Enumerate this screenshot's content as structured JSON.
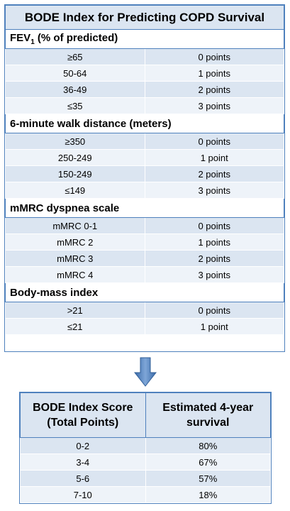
{
  "title": "BODE Index for Predicting COPD Survival",
  "sections": [
    {
      "label_main": "FEV",
      "label_sub": "1",
      "label_rest": " (% of predicted)",
      "rows": [
        {
          "range": "≥65",
          "points": "0 points"
        },
        {
          "range": "50-64",
          "points": "1 points"
        },
        {
          "range": "36-49",
          "points": "2 points"
        },
        {
          "range": "≤35",
          "points": "3 points"
        }
      ]
    },
    {
      "label_main": "6-minute walk distance (meters)",
      "label_sub": "",
      "label_rest": "",
      "rows": [
        {
          "range": "≥350",
          "points": "0 points"
        },
        {
          "range": "250-249",
          "points": "1 point"
        },
        {
          "range": "150-249",
          "points": "2 points"
        },
        {
          "range": "≤149",
          "points": "3 points"
        }
      ]
    },
    {
      "label_main": "mMRC dyspnea scale",
      "label_sub": "",
      "label_rest": "",
      "rows": [
        {
          "range": "mMRC 0-1",
          "points": "0 points"
        },
        {
          "range": "mMRC 2",
          "points": "1 points"
        },
        {
          "range": "mMRC 3",
          "points": "2 points"
        },
        {
          "range": "mMRC 4",
          "points": "3 points"
        }
      ]
    },
    {
      "label_main": "Body-mass index",
      "label_sub": "",
      "label_rest": "",
      "rows": [
        {
          "range": ">21",
          "points": "0 points"
        },
        {
          "range": "≤21",
          "points": "1 point"
        }
      ]
    }
  ],
  "arrow_icon": "down-arrow-icon",
  "score_table": {
    "header_left_1": "BODE Index Score",
    "header_left_2": "(Total Points)",
    "header_right_1": "Estimated 4-year",
    "header_right_2": "survival",
    "rows": [
      {
        "score": "0-2",
        "survival": "80%"
      },
      {
        "score": "3-4",
        "survival": "67%"
      },
      {
        "score": "5-6",
        "survival": "57%"
      },
      {
        "score": "7-10",
        "survival": "18%"
      }
    ]
  },
  "colors": {
    "accent": "#4f81bd",
    "fill": "#dbe5f1",
    "fill_alt": "#eef3f9"
  }
}
